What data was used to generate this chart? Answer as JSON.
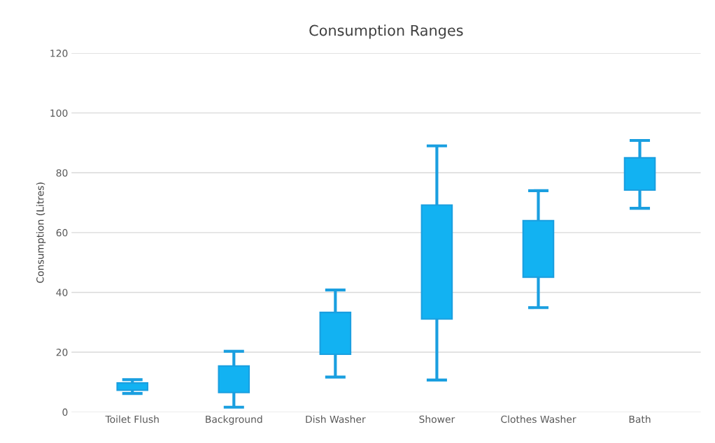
{
  "chart_data": {
    "type": "bar",
    "title": "Consumption Ranges",
    "ylabel": "Consumption (Litres)",
    "categories": [
      "Toilet Flush",
      "Background",
      "Dish Washer",
      "Shower",
      "Clothes Washer",
      "Bath"
    ],
    "base": [
      7.3,
      6.5,
      19.3,
      31.1,
      45.1,
      74.2
    ],
    "values": [
      2.4,
      8.9,
      14.0,
      38.1,
      18.9,
      10.8
    ],
    "errors": [
      [
        6.2,
        10.8
      ],
      [
        1.6,
        20.3
      ],
      [
        11.7,
        40.8
      ],
      [
        10.7,
        89.0
      ],
      [
        34.9,
        74.0
      ],
      [
        68.1,
        90.8
      ]
    ],
    "color": "#12b2f2",
    "ylim": [
      0,
      120
    ],
    "yticks": [
      0,
      20,
      40,
      60,
      80,
      100,
      120
    ],
    "grid": "y"
  }
}
